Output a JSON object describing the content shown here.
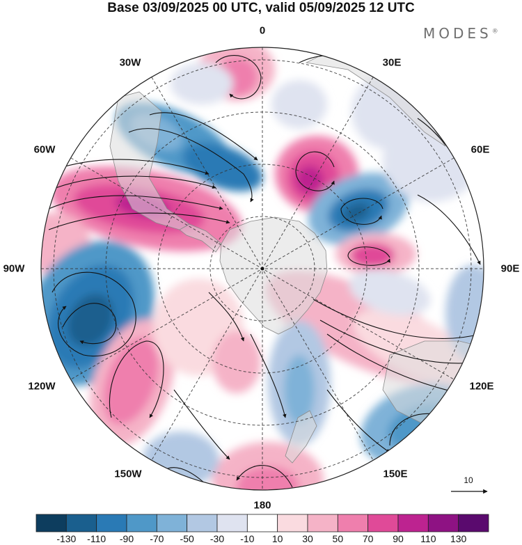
{
  "title": "Base 03/09/2025 00 UTC, valid 05/09/2025 12 UTC",
  "brand": {
    "name": "MODES",
    "mark": "®"
  },
  "longitude_labels": {
    "lon_0": "0",
    "lon_30e": "30E",
    "lon_60e": "60E",
    "lon_90e": "90E",
    "lon_120e": "120E",
    "lon_150e": "150E",
    "lon_180": "180",
    "lon_150w": "150W",
    "lon_120w": "120W",
    "lon_90w": "90W",
    "lon_60w": "60W",
    "lon_30w": "30W"
  },
  "reference_vector": {
    "label": "10"
  },
  "colorbar": {
    "colors": [
      "#0d3d5e",
      "#1a5f8e",
      "#2a7ab5",
      "#4f98c8",
      "#7fb2d8",
      "#b2c8e3",
      "#dfe3f0",
      "#ffffff",
      "#fadbe0",
      "#f5b3c7",
      "#ef7fad",
      "#e04a98",
      "#bd2390",
      "#8e1283",
      "#5a0a6e"
    ],
    "ticks": [
      "-130",
      "-110",
      "-90",
      "-70",
      "-50",
      "-30",
      "-10",
      "10",
      "30",
      "50",
      "70",
      "90",
      "110",
      "130"
    ]
  }
}
